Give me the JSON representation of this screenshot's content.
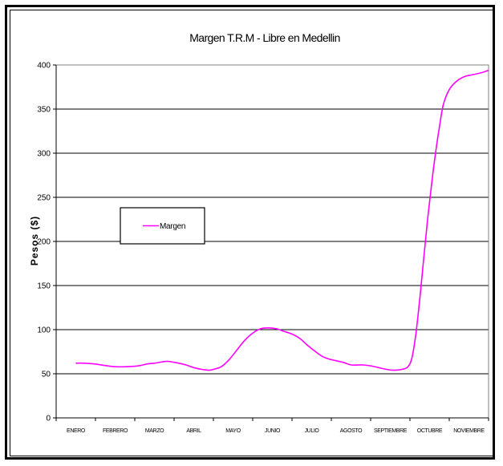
{
  "chart_data": {
    "type": "line",
    "title": "Margen T.R.M - Libre en Medellin",
    "xlabel": "",
    "ylabel": "Pesos  ($)",
    "ylim": [
      0,
      400
    ],
    "yticks": [
      "0",
      "50",
      "100",
      "150",
      "200",
      "250",
      "300",
      "350",
      "400"
    ],
    "categories": [
      "ENERO",
      "FEBRERO",
      "MARZO",
      "ABRIL",
      "MAYO",
      "JUNIO",
      "JULIO",
      "AGOSTO",
      "SEPTIEMBRE",
      "OCTUBRE",
      "NOVIEMBRE"
    ],
    "grid": true,
    "legend_position": "left-middle",
    "series": [
      {
        "name": "Margen",
        "color": "#ff00ff",
        "points": [
          [
            0.0,
            62
          ],
          [
            0.2,
            62
          ],
          [
            0.5,
            61
          ],
          [
            0.8,
            59
          ],
          [
            1.0,
            58
          ],
          [
            1.3,
            58
          ],
          [
            1.6,
            59
          ],
          [
            1.8,
            61
          ],
          [
            2.0,
            62
          ],
          [
            2.3,
            64
          ],
          [
            2.5,
            63
          ],
          [
            2.8,
            60
          ],
          [
            3.0,
            57
          ],
          [
            3.2,
            55
          ],
          [
            3.4,
            54
          ],
          [
            3.5,
            55
          ],
          [
            3.7,
            58
          ],
          [
            3.9,
            66
          ],
          [
            4.1,
            77
          ],
          [
            4.3,
            88
          ],
          [
            4.5,
            96
          ],
          [
            4.7,
            101
          ],
          [
            4.9,
            102
          ],
          [
            5.1,
            101
          ],
          [
            5.3,
            98
          ],
          [
            5.5,
            95
          ],
          [
            5.7,
            90
          ],
          [
            5.9,
            82
          ],
          [
            6.1,
            75
          ],
          [
            6.3,
            69
          ],
          [
            6.5,
            66
          ],
          [
            6.8,
            63
          ],
          [
            7.0,
            60
          ],
          [
            7.3,
            60
          ],
          [
            7.5,
            59
          ],
          [
            7.7,
            57
          ],
          [
            7.9,
            55
          ],
          [
            8.1,
            54
          ],
          [
            8.3,
            55
          ],
          [
            8.45,
            58
          ],
          [
            8.55,
            68
          ],
          [
            8.65,
            95
          ],
          [
            8.75,
            135
          ],
          [
            8.85,
            180
          ],
          [
            8.95,
            225
          ],
          [
            9.05,
            265
          ],
          [
            9.15,
            300
          ],
          [
            9.25,
            330
          ],
          [
            9.35,
            355
          ],
          [
            9.5,
            372
          ],
          [
            9.7,
            382
          ],
          [
            9.9,
            387
          ],
          [
            10.1,
            389
          ],
          [
            10.3,
            391
          ],
          [
            10.5,
            394
          ]
        ]
      }
    ]
  }
}
